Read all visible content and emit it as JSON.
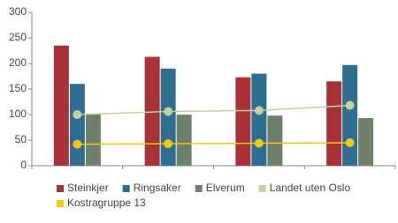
{
  "chart_data": {
    "type": "bar",
    "categories": [
      null,
      null,
      null,
      null
    ],
    "series": [
      {
        "name": "Steinkjer",
        "color": "#a83238",
        "values": [
          235,
          213,
          173,
          165
        ]
      },
      {
        "name": "Ringsaker",
        "color": "#2e6e91",
        "values": [
          160,
          190,
          180,
          197
        ]
      },
      {
        "name": "Elverum",
        "color": "#6e7f6a",
        "values": [
          100,
          100,
          98,
          93
        ]
      },
      {
        "name": "Landet uten Oslo",
        "color": "#c6cf9f",
        "type": "line",
        "values": [
          100,
          106,
          108,
          118
        ]
      },
      {
        "name": "Kostragruppe 13",
        "color": "#f2c811",
        "type": "line",
        "values": [
          42,
          43,
          44,
          45
        ]
      }
    ],
    "ylim": [
      0,
      300
    ],
    "yticks": [
      0,
      50,
      100,
      150,
      200,
      250,
      300
    ],
    "grid": false,
    "legend": "bottom"
  }
}
